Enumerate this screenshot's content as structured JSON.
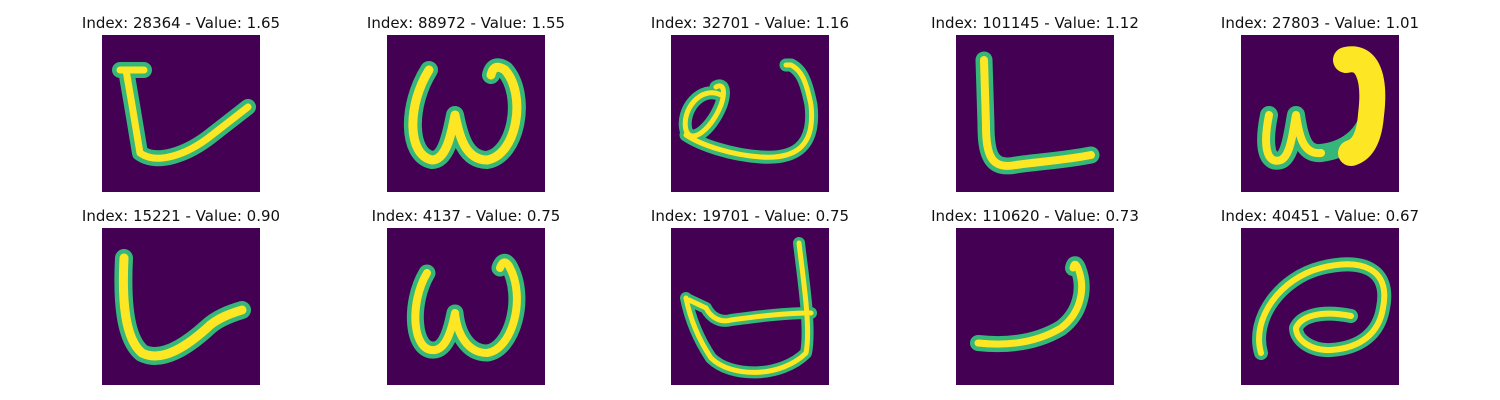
{
  "panels": [
    {
      "title": "Index: 28364 - Value: 1.65",
      "glyph": "stroke-hook",
      "image_colors": {
        "background": "#440154",
        "stroke": "#FDE725"
      }
    },
    {
      "title": "Index: 88972 - Value: 1.55",
      "glyph": "stroke-w"
    },
    {
      "title": "Index: 32701 - Value: 1.16",
      "glyph": "stroke-loop"
    },
    {
      "title": "Index: 101145 - Value: 1.12",
      "glyph": "stroke-L"
    },
    {
      "title": "Index: 27803 - Value: 1.01",
      "glyph": "stroke-w-bold"
    },
    {
      "title": "Index: 15221 - Value: 0.90",
      "glyph": "stroke-swoosh"
    },
    {
      "title": "Index: 4137 - Value: 0.75",
      "glyph": "stroke-w"
    },
    {
      "title": "Index: 19701 - Value: 0.75",
      "glyph": "stroke-d"
    },
    {
      "title": "Index: 110620 - Value: 0.73",
      "glyph": "stroke-j"
    },
    {
      "title": "Index: 40451 - Value: 0.67",
      "glyph": "stroke-eye"
    }
  ]
}
